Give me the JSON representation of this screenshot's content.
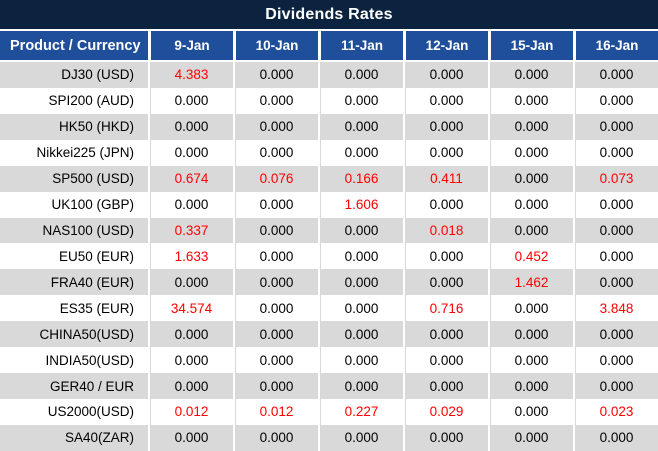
{
  "title": "Dividends Rates",
  "colors": {
    "title_bar_bg": "#0c2340",
    "header_bg": "#1f4e9b",
    "header_text": "#ffffff",
    "row_alt_bg": "#d9d9d9",
    "row_bg": "#ffffff",
    "value_text": "#000000",
    "value_highlight_red": "#ff0000",
    "divider": "#ffffff"
  },
  "table": {
    "product_header": "Product / Currency",
    "date_headers": [
      "9-Jan",
      "10-Jan",
      "11-Jan",
      "12-Jan",
      "15-Jan",
      "16-Jan"
    ],
    "rows": [
      {
        "product": "DJ30 (USD)",
        "values": [
          "4.383",
          "0.000",
          "0.000",
          "0.000",
          "0.000",
          "0.000"
        ],
        "red_cols": [
          0
        ]
      },
      {
        "product": "SPI200 (AUD)",
        "values": [
          "0.000",
          "0.000",
          "0.000",
          "0.000",
          "0.000",
          "0.000"
        ],
        "red_cols": []
      },
      {
        "product": "HK50 (HKD)",
        "values": [
          "0.000",
          "0.000",
          "0.000",
          "0.000",
          "0.000",
          "0.000"
        ],
        "red_cols": []
      },
      {
        "product": "Nikkei225 (JPN)",
        "values": [
          "0.000",
          "0.000",
          "0.000",
          "0.000",
          "0.000",
          "0.000"
        ],
        "red_cols": []
      },
      {
        "product": "SP500 (USD)",
        "values": [
          "0.674",
          "0.076",
          "0.166",
          "0.411",
          "0.000",
          "0.073"
        ],
        "red_cols": [
          0,
          1,
          2,
          3,
          5
        ]
      },
      {
        "product": "UK100 (GBP)",
        "values": [
          "0.000",
          "0.000",
          "1.606",
          "0.000",
          "0.000",
          "0.000"
        ],
        "red_cols": [
          2
        ]
      },
      {
        "product": "NAS100 (USD)",
        "values": [
          "0.337",
          "0.000",
          "0.000",
          "0.018",
          "0.000",
          "0.000"
        ],
        "red_cols": [
          0,
          3
        ]
      },
      {
        "product": "EU50 (EUR)",
        "values": [
          "1.633",
          "0.000",
          "0.000",
          "0.000",
          "0.452",
          "0.000"
        ],
        "red_cols": [
          0,
          4
        ]
      },
      {
        "product": "FRA40 (EUR)",
        "values": [
          "0.000",
          "0.000",
          "0.000",
          "0.000",
          "1.462",
          "0.000"
        ],
        "red_cols": [
          4
        ]
      },
      {
        "product": "ES35 (EUR)",
        "values": [
          "34.574",
          "0.000",
          "0.000",
          "0.716",
          "0.000",
          "3.848"
        ],
        "red_cols": [
          0,
          3,
          5
        ]
      },
      {
        "product": "CHINA50(USD)",
        "values": [
          "0.000",
          "0.000",
          "0.000",
          "0.000",
          "0.000",
          "0.000"
        ],
        "red_cols": []
      },
      {
        "product": "INDIA50(USD)",
        "values": [
          "0.000",
          "0.000",
          "0.000",
          "0.000",
          "0.000",
          "0.000"
        ],
        "red_cols": []
      },
      {
        "product": "GER40 / EUR",
        "values": [
          "0.000",
          "0.000",
          "0.000",
          "0.000",
          "0.000",
          "0.000"
        ],
        "red_cols": []
      },
      {
        "product": "US2000(USD)",
        "values": [
          "0.012",
          "0.012",
          "0.227",
          "0.029",
          "0.000",
          "0.023"
        ],
        "red_cols": [
          0,
          1,
          2,
          3,
          5
        ]
      },
      {
        "product": "SA40(ZAR)",
        "values": [
          "0.000",
          "0.000",
          "0.000",
          "0.000",
          "0.000",
          "0.000"
        ],
        "red_cols": []
      }
    ]
  }
}
